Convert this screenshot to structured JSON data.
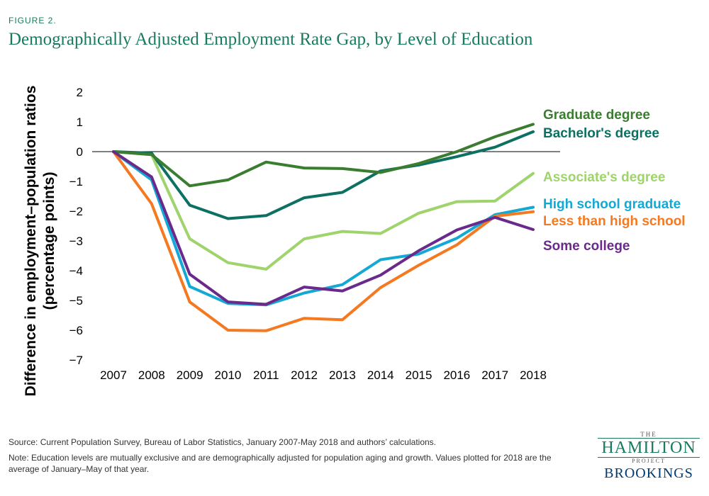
{
  "figure_label": "FIGURE 2.",
  "footer": {
    "source": "Source: Current Population Survey, Bureau of Labor Statistics, January 2007-May 2018 and authors’ calculations.",
    "note": "Note: Education levels are mutually exclusive and are demographically adjusted for population aging and growth. Values plotted for 2018 are the average of January–May of that year."
  },
  "logo": {
    "the": "THE",
    "hamilton": "HAMILTON",
    "project": "PROJECT",
    "brookings": "BROOKINGS"
  },
  "colors": {
    "title": "#1a7a5e",
    "graduate": "#3b7d30",
    "bachelors": "#0c7062",
    "associates": "#9fd36b",
    "high_school": "#14a8d4",
    "less_than_hs": "#f47920",
    "some_college": "#6a2a8c"
  },
  "chart_data": {
    "type": "line",
    "title": "Demographically Adjusted Employment Rate Gap, by Level of Education",
    "xlabel": "",
    "ylabel": "Difference in employment–population ratios (percentage points)",
    "ylabel_lines": [
      "Difference in employment–population ratios",
      "(percentage points)"
    ],
    "x": [
      2007,
      2008,
      2009,
      2010,
      2011,
      2012,
      2013,
      2014,
      2015,
      2016,
      2017,
      2018
    ],
    "xlim": [
      2007,
      2018
    ],
    "ylim": [
      -7,
      2
    ],
    "yticks": [
      2,
      1,
      0,
      -1,
      -2,
      -3,
      -4,
      -5,
      -6,
      -7
    ],
    "ytick_labels": [
      "2",
      "1",
      "0",
      "−1",
      "−2",
      "−3",
      "−4",
      "−5",
      "−6",
      "−7"
    ],
    "grid": false,
    "series": [
      {
        "key": "graduate",
        "name": "Graduate degree",
        "color": "#3b7d30",
        "values": [
          0,
          -0.1,
          -1.15,
          -0.95,
          -0.35,
          -0.55,
          -0.57,
          -0.7,
          -0.4,
          0,
          0.5,
          0.92
        ]
      },
      {
        "key": "bachelors",
        "name": "Bachelor's degree",
        "color": "#0c7062",
        "values": [
          0,
          -0.05,
          -1.8,
          -2.25,
          -2.15,
          -1.55,
          -1.37,
          -0.65,
          -0.45,
          -0.17,
          0.15,
          0.67
        ]
      },
      {
        "key": "associates",
        "name": "Associate's degree",
        "color": "#9fd36b",
        "values": [
          0,
          -0.1,
          -2.93,
          -3.73,
          -3.95,
          -2.93,
          -2.68,
          -2.75,
          -2.07,
          -1.68,
          -1.66,
          -0.73
        ]
      },
      {
        "key": "high_school",
        "name": "High school graduate",
        "color": "#14a8d4",
        "values": [
          0,
          -0.95,
          -4.53,
          -5.1,
          -5.15,
          -4.75,
          -4.47,
          -3.63,
          -3.44,
          -2.91,
          -2.12,
          -1.87
        ]
      },
      {
        "key": "less_than_hs",
        "name": "Less than high school",
        "color": "#f47920",
        "values": [
          0,
          -1.75,
          -5.05,
          -6.0,
          -6.02,
          -5.6,
          -5.65,
          -4.57,
          -3.82,
          -3.13,
          -2.17,
          -2.02
        ]
      },
      {
        "key": "some_college",
        "name": "Some college",
        "color": "#6a2a8c",
        "values": [
          0,
          -0.85,
          -4.12,
          -5.05,
          -5.13,
          -4.55,
          -4.68,
          -4.15,
          -3.33,
          -2.63,
          -2.21,
          -2.62
        ]
      }
    ]
  }
}
